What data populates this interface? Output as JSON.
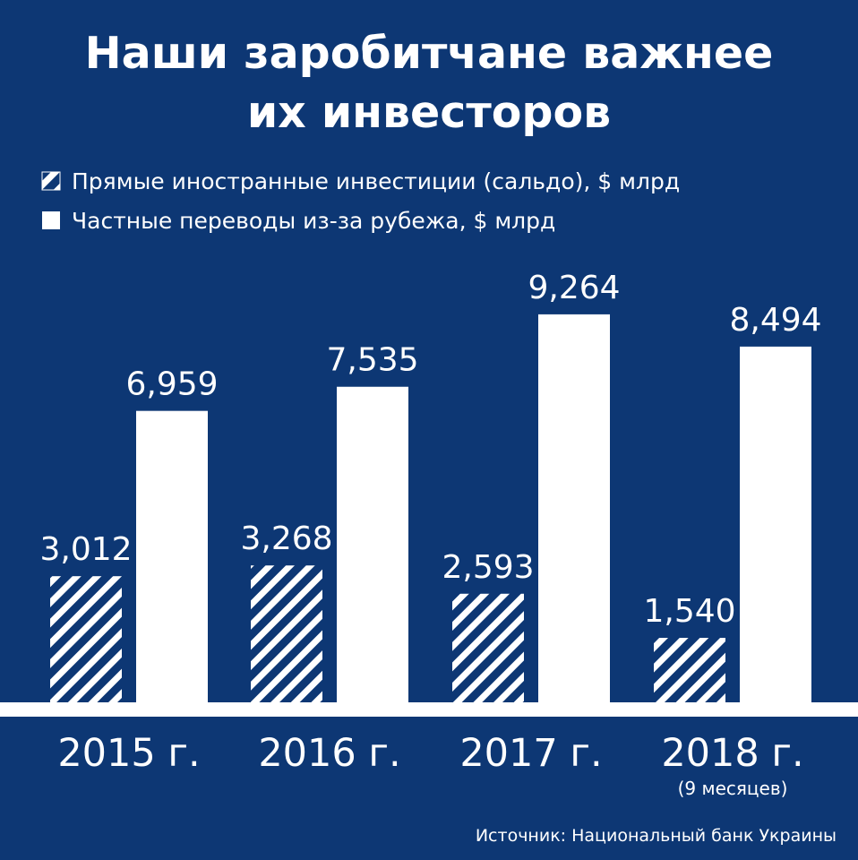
{
  "colors": {
    "background": "#0d3774",
    "bar_fill": "#ffffff",
    "hatch_stroke": "#ffffff"
  },
  "chart_data": {
    "type": "bar",
    "title_lines": [
      "Наши заробитчане важнее",
      "их инвесторов"
    ],
    "legend_placement": "top-left",
    "categories": [
      "2015 г.",
      "2016 г.",
      "2017 г.",
      "2018 г."
    ],
    "category_notes": [
      "",
      "",
      "",
      "(9 месяцев)"
    ],
    "series": [
      {
        "name": "Прямые иностранные инвестиции (сальдо), $ млрд",
        "pattern": "hatched",
        "values": [
          3.012,
          3.268,
          2.593,
          1.54
        ],
        "labels": [
          "3,012",
          "3,268",
          "2,593",
          "1,540"
        ]
      },
      {
        "name": "Частные переводы из-за рубежа, $ млрд",
        "pattern": "solid",
        "values": [
          6.959,
          7.535,
          9.264,
          8.494
        ],
        "labels": [
          "6,959",
          "7,535",
          "9,264",
          "8,494"
        ]
      }
    ],
    "ylim": [
      0,
      10
    ],
    "grid": false,
    "source": "Источник: Национальный банк Украины"
  }
}
